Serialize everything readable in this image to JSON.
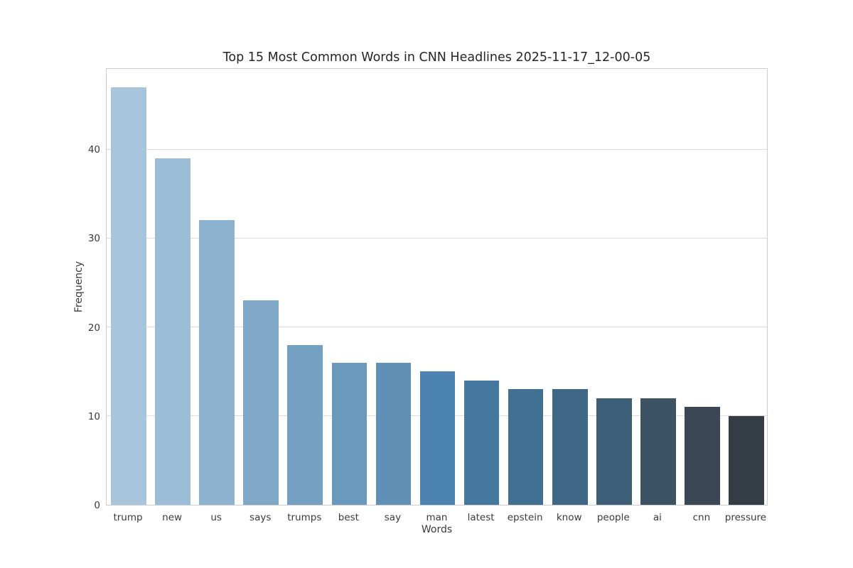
{
  "chart_data": {
    "type": "bar",
    "title": "Top 15 Most Common Words in CNN Headlines 2025-11-17_12-00-05",
    "xlabel": "Words",
    "ylabel": "Frequency",
    "categories": [
      "trump",
      "new",
      "us",
      "says",
      "trumps",
      "best",
      "say",
      "man",
      "latest",
      "epstein",
      "know",
      "people",
      "ai",
      "cnn",
      "pressure"
    ],
    "values": [
      47,
      39,
      32,
      23,
      18,
      16,
      16,
      15,
      14,
      13,
      13,
      12,
      12,
      11,
      10
    ],
    "bar_colors": [
      "#a8c5dc",
      "#9dbcd6",
      "#8cb2cf",
      "#80a9c8",
      "#74a0c2",
      "#6a99bd",
      "#6190b6",
      "#4c83b0",
      "#44789e",
      "#417093",
      "#3f6886",
      "#3d6078",
      "#3c5366",
      "#3a4856",
      "#343c45"
    ],
    "yticks": [
      0,
      10,
      20,
      30,
      40
    ],
    "ylim": [
      0,
      49.2
    ],
    "grid": true,
    "legend": "none",
    "background_color": "#ffffff",
    "grid_color": "#dcdcdc",
    "spine_color": "#cccccc",
    "text_color": "#3a3a3a",
    "title_color": "#262626"
  }
}
